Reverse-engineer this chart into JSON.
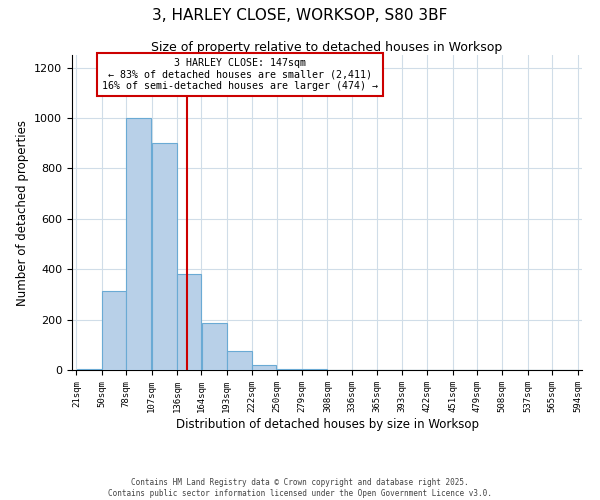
{
  "title": "3, HARLEY CLOSE, WORKSOP, S80 3BF",
  "subtitle": "Size of property relative to detached houses in Worksop",
  "xlabel": "Distribution of detached houses by size in Worksop",
  "ylabel": "Number of detached properties",
  "bar_edges": [
    21,
    50,
    78,
    107,
    136,
    164,
    193,
    222,
    250,
    279,
    308,
    336,
    365,
    393,
    422,
    451,
    479,
    508,
    537,
    565,
    594
  ],
  "bar_heights": [
    5,
    315,
    1000,
    900,
    380,
    185,
    75,
    20,
    5,
    2,
    0,
    0,
    0,
    0,
    0,
    0,
    0,
    0,
    0,
    0
  ],
  "bar_color": "#b8d0e8",
  "bar_edge_color": "#6aaad4",
  "vline_x": 147,
  "vline_color": "#cc0000",
  "annotation_title": "3 HARLEY CLOSE: 147sqm",
  "annotation_line1": "← 83% of detached houses are smaller (2,411)",
  "annotation_line2": "16% of semi-detached houses are larger (474) →",
  "annotation_box_edge_color": "#cc0000",
  "annotation_box_face_color": "#ffffff",
  "ylim": [
    0,
    1250
  ],
  "yticks": [
    0,
    200,
    400,
    600,
    800,
    1000,
    1200
  ],
  "tick_labels": [
    "21sqm",
    "50sqm",
    "78sqm",
    "107sqm",
    "136sqm",
    "164sqm",
    "193sqm",
    "222sqm",
    "250sqm",
    "279sqm",
    "308sqm",
    "336sqm",
    "365sqm",
    "393sqm",
    "422sqm",
    "451sqm",
    "479sqm",
    "508sqm",
    "537sqm",
    "565sqm",
    "594sqm"
  ],
  "footer1": "Contains HM Land Registry data © Crown copyright and database right 2025.",
  "footer2": "Contains public sector information licensed under the Open Government Licence v3.0.",
  "background_color": "#ffffff",
  "grid_color": "#d0dde8"
}
